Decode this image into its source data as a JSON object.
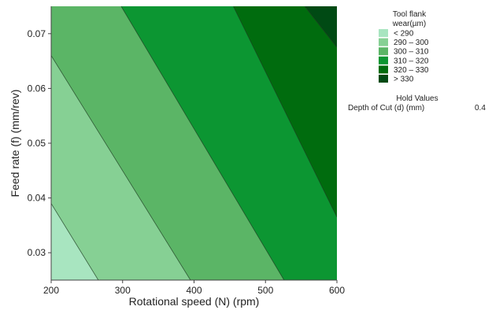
{
  "chart_data": {
    "type": "contour",
    "xlabel": "Rotational speed (N) (rpm)",
    "ylabel": "Feed rate (f) (mm/rev)",
    "xlim": [
      200,
      600
    ],
    "ylim": [
      0.025,
      0.075
    ],
    "x_ticks": [
      200,
      300,
      400,
      500,
      600
    ],
    "y_ticks": [
      0.03,
      0.04,
      0.05,
      0.06,
      0.07
    ],
    "y_tick_labels": [
      "0.03",
      "0.04",
      "0.05",
      "0.06",
      "0.07"
    ],
    "contour_levels": [
      290,
      300,
      310,
      320,
      330
    ],
    "contour_lines": [
      {
        "level": 290,
        "points": [
          [
            200,
            0.039
          ],
          [
            266,
            0.025
          ]
        ]
      },
      {
        "level": 300,
        "points": [
          [
            200,
            0.066
          ],
          [
            395,
            0.025
          ]
        ]
      },
      {
        "level": 310,
        "points": [
          [
            298,
            0.075
          ],
          [
            526,
            0.025
          ]
        ]
      },
      {
        "level": 320,
        "points": [
          [
            455,
            0.075
          ],
          [
            600,
            0.0365
          ]
        ]
      },
      {
        "level": 330,
        "points": [
          [
            555,
            0.075
          ],
          [
            600,
            0.0675
          ]
        ]
      }
    ],
    "legend": {
      "title_line1": "Tool flank",
      "title_line2": "wear(µm)",
      "entries": [
        {
          "label": "< 290",
          "color": "#a8e5c0"
        },
        {
          "label": "290  –  300",
          "color": "#86d094"
        },
        {
          "label": "300  –  310",
          "color": "#5bb566"
        },
        {
          "label": "310  –  320",
          "color": "#0c9632"
        },
        {
          "label": "320  –  330",
          "color": "#006c0e"
        },
        {
          "label": "> 330",
          "color": "#004a14"
        }
      ]
    },
    "hold_values": {
      "title": "Hold Values",
      "label": "Depth of Cut (d) (mm)",
      "value": "0.4"
    }
  }
}
